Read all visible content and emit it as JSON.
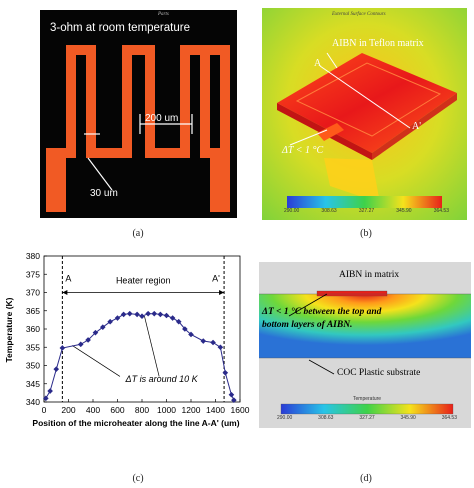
{
  "panel_a": {
    "title": "3-ohm at room temperature",
    "tiny": "Parts",
    "dim_width": "200 um",
    "dim_line": "30 um",
    "caption": "(a)"
  },
  "panel_b": {
    "header": "External Surface Contours",
    "label_aibn": "AIBN in Teflon matrix",
    "label_a": "A",
    "label_a_prime": "A'",
    "label_dt": "ΔT < 1 °C",
    "colorbar_ticks": [
      "290.00",
      "308.63",
      "327.27",
      "345.90",
      "364.53"
    ],
    "caption": "(b)"
  },
  "panel_c": {
    "caption": "(c)",
    "chart_data": {
      "type": "line",
      "title": "",
      "xlabel": "Position of the microheater along the line A-A' (um)",
      "ylabel": "Temperature (K)",
      "xlim": [
        0,
        1600
      ],
      "ylim": [
        340,
        380
      ],
      "xticks": [
        0,
        200,
        400,
        600,
        800,
        1000,
        1200,
        1400,
        1600
      ],
      "yticks": [
        340,
        345,
        350,
        355,
        360,
        365,
        370,
        375,
        380
      ],
      "x": [
        15,
        50,
        100,
        150,
        300,
        360,
        420,
        480,
        540,
        600,
        650,
        700,
        760,
        800,
        850,
        900,
        950,
        1000,
        1050,
        1100,
        1150,
        1200,
        1300,
        1380,
        1440,
        1480,
        1530,
        1550
      ],
      "y": [
        341,
        343,
        349,
        354.8,
        355.8,
        357,
        359,
        360.5,
        362,
        363,
        364,
        364.2,
        364,
        363.5,
        364.2,
        364.2,
        364,
        363.7,
        363,
        362,
        360,
        358.5,
        356.7,
        356.3,
        355,
        348,
        342,
        340.5
      ],
      "annotations": {
        "label_a": "A",
        "label_a_prime": "A'",
        "region": "Heater region",
        "delta_t": "ΔT is around 10 K"
      }
    }
  },
  "panel_d": {
    "label_aibn": "AIBN in matrix",
    "label_dt_line1": "ΔT < 1 °C between the top and",
    "label_dt_line2": "bottom layers of AIBN.",
    "label_substrate": "COC Plastic substrate",
    "colorbar_title": "Temperature",
    "colorbar_ticks": [
      "290.00",
      "308.63",
      "327.27",
      "345.90",
      "364.53"
    ],
    "caption": "(d)"
  }
}
